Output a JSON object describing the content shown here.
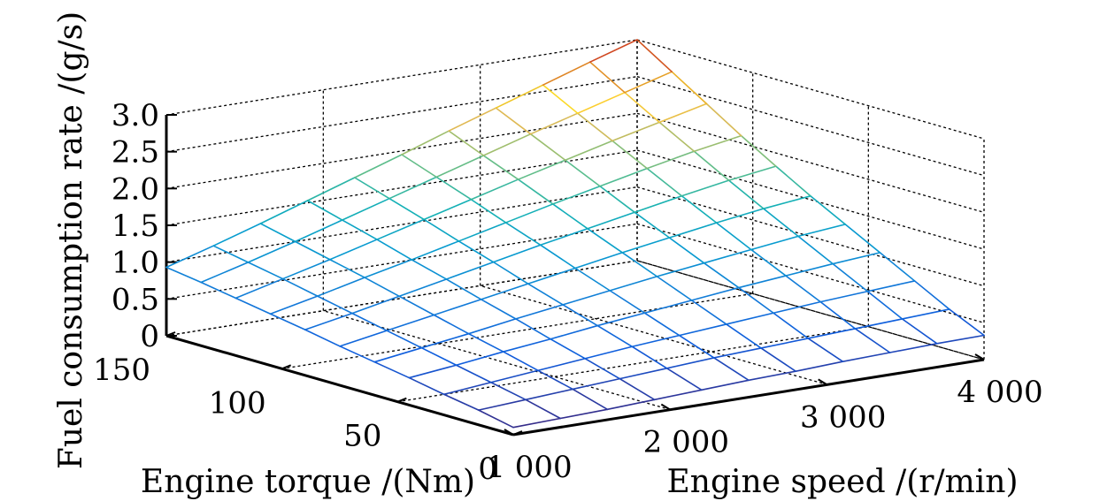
{
  "chart_data": {
    "type": "surface",
    "title": "",
    "xlabel": "Engine speed /(r/min)",
    "ylabel": "Engine torque /(Nm)",
    "zlabel": "Fuel consumption rate /(g/s)",
    "xlim": [
      1000,
      4000
    ],
    "ylim": [
      0,
      150
    ],
    "zlim": [
      0,
      3.0
    ],
    "x_ticks": [
      "1 000",
      "2 000",
      "3 000",
      "4 000"
    ],
    "y_ticks": [
      "0",
      "50",
      "100",
      "150"
    ],
    "z_ticks": [
      "0",
      "0.5",
      "1.0",
      "1.5",
      "2.0",
      "2.5",
      "3.0"
    ],
    "grid": true,
    "colormap": "parula",
    "x": [
      1000,
      1300,
      1600,
      1900,
      2200,
      2500,
      2800,
      3100,
      3400,
      3700,
      4000
    ],
    "y": [
      0,
      15,
      30,
      45,
      60,
      75,
      90,
      105,
      120,
      135,
      150
    ],
    "z": [
      [
        0.1,
        0.12,
        0.14,
        0.17,
        0.2,
        0.23,
        0.25,
        0.28,
        0.3,
        0.32,
        0.33
      ],
      [
        0.2,
        0.24,
        0.28,
        0.32,
        0.36,
        0.4,
        0.43,
        0.46,
        0.49,
        0.52,
        0.55
      ],
      [
        0.28,
        0.34,
        0.4,
        0.46,
        0.52,
        0.57,
        0.62,
        0.67,
        0.72,
        0.76,
        0.8
      ],
      [
        0.37,
        0.44,
        0.52,
        0.59,
        0.67,
        0.74,
        0.81,
        0.88,
        0.94,
        1.0,
        1.05
      ],
      [
        0.45,
        0.54,
        0.63,
        0.73,
        0.82,
        0.91,
        1.0,
        1.08,
        1.16,
        1.24,
        1.3
      ],
      [
        0.53,
        0.64,
        0.75,
        0.86,
        0.97,
        1.08,
        1.19,
        1.29,
        1.39,
        1.48,
        1.55
      ],
      [
        0.62,
        0.74,
        0.87,
        1.0,
        1.13,
        1.26,
        1.38,
        1.5,
        1.62,
        1.73,
        1.82
      ],
      [
        0.7,
        0.84,
        0.99,
        1.13,
        1.28,
        1.43,
        1.58,
        1.72,
        1.86,
        1.99,
        2.1
      ],
      [
        0.78,
        0.94,
        1.1,
        1.27,
        1.44,
        1.61,
        1.78,
        1.94,
        2.1,
        2.25,
        2.4
      ],
      [
        0.86,
        1.03,
        1.21,
        1.4,
        1.59,
        1.78,
        1.97,
        2.16,
        2.34,
        2.52,
        2.7
      ],
      [
        0.93,
        1.12,
        1.32,
        1.53,
        1.74,
        1.95,
        2.17,
        2.38,
        2.59,
        2.8,
        3.0
      ]
    ]
  }
}
